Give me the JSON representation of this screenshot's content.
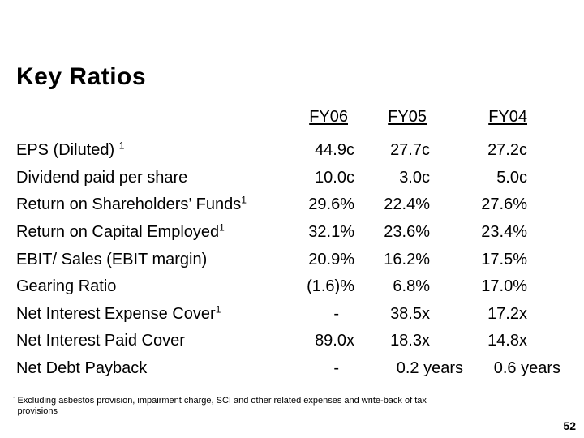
{
  "title": "Key Ratios",
  "table": {
    "columns": [
      "FY06",
      "FY05",
      "FY04"
    ],
    "rows": [
      {
        "label": "EPS (Diluted)",
        "sup": "1",
        "sup_space": true,
        "values": [
          "44.9c",
          "27.7c",
          "27.2c"
        ]
      },
      {
        "label": "Dividend paid per share",
        "values": [
          "10.0c",
          "3.0c",
          "5.0c"
        ]
      },
      {
        "label": "Return on Shareholders’ Funds",
        "sup": "1",
        "values": [
          "29.6%",
          "22.4%",
          "27.6%"
        ]
      },
      {
        "label": "Return on Capital Employed",
        "sup": "1",
        "values": [
          "32.1%",
          "23.6%",
          "23.4%"
        ]
      },
      {
        "label": "EBIT/ Sales (EBIT margin)",
        "values": [
          "20.9%",
          "16.2%",
          "17.5%"
        ]
      },
      {
        "label": "Gearing Ratio",
        "values": [
          "(1.6)%",
          "6.8%",
          "17.0%"
        ]
      },
      {
        "label": "Net Interest Expense Cover",
        "sup": "1",
        "values": [
          "-",
          "38.5x",
          "17.2x"
        ]
      },
      {
        "label": "Net Interest Paid Cover",
        "values": [
          "89.0x",
          "18.3x",
          "14.8x"
        ]
      },
      {
        "label": "Net Debt Payback",
        "values": [
          "-",
          "0.2 years",
          "0.6 years"
        ]
      }
    ]
  },
  "footnote": {
    "marker": "1",
    "lines": [
      "Excluding asbestos provision, impairment charge, SCI and other related expenses and write-back of tax",
      "provisions"
    ]
  },
  "page_number": "52"
}
